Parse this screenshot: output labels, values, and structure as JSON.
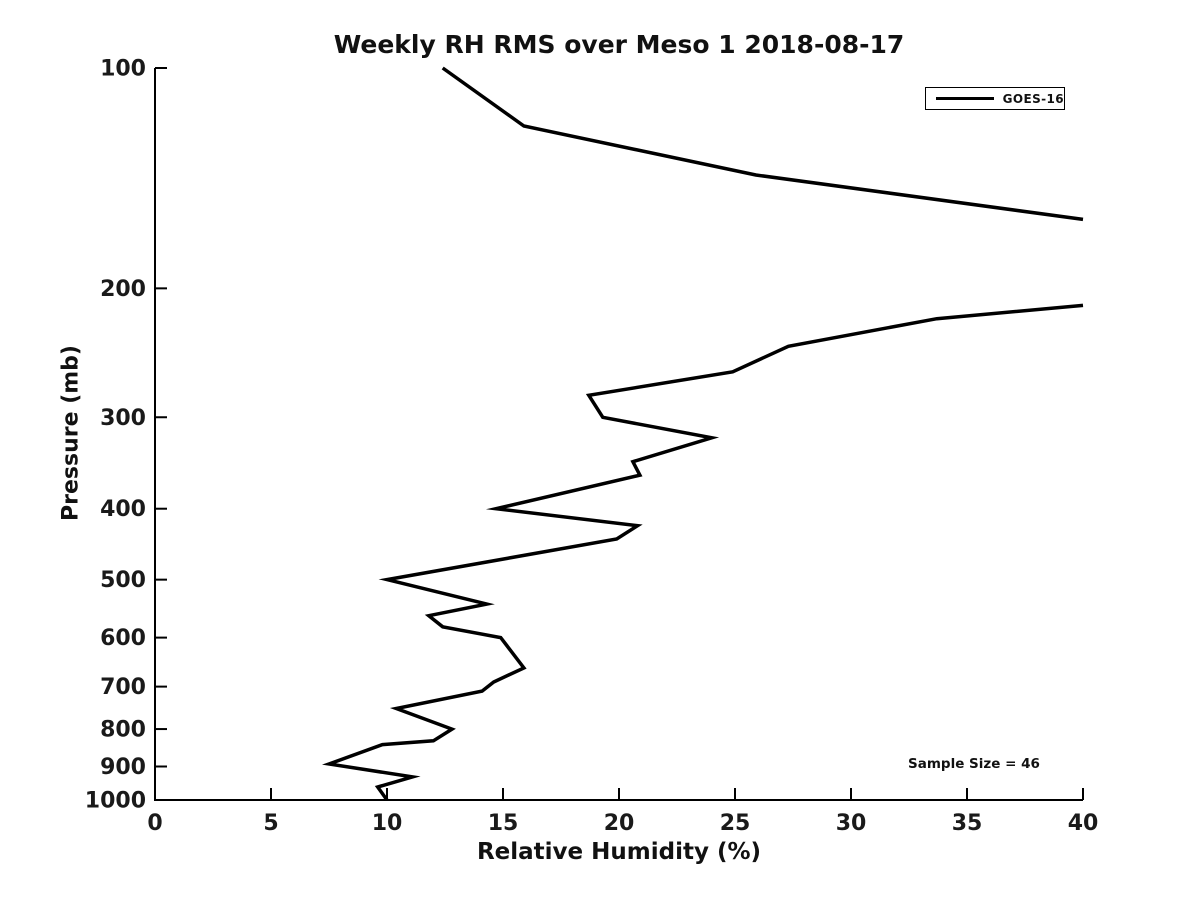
{
  "colors": {
    "line": "#000000",
    "axis": "#000000",
    "text": "#1a1a1a",
    "background": "#ffffff"
  },
  "chart_data": {
    "type": "line",
    "title": "Weekly RH RMS over Meso 1 2018-08-17",
    "xlabel": "Relative Humidity (%)",
    "ylabel": "Pressure (mb)",
    "xlim": [
      0,
      40
    ],
    "ylim_pressure": [
      100,
      1000
    ],
    "y_scale": "log",
    "y_inverted": true,
    "grid": false,
    "x_ticks": [
      0,
      5,
      10,
      15,
      20,
      25,
      30,
      35,
      40
    ],
    "y_ticks": [
      100,
      200,
      300,
      400,
      500,
      600,
      700,
      800,
      900,
      1000
    ],
    "legend": {
      "position": "upper right",
      "entries": [
        "GOES-16"
      ]
    },
    "series": [
      {
        "name": "GOES-16",
        "color": "#000000",
        "line_width": 3.5,
        "note": "Single continuous profile; RH exceeds the 40% axis limit between ~161 mb and ~211 mb, so the line is clipped at the right edge into two visible segments.",
        "segments": [
          {
            "points_rh_pressure": [
              [
                12.4,
                100
              ],
              [
                15.9,
                120
              ],
              [
                25.9,
                140
              ],
              [
                40,
                161
              ]
            ]
          },
          {
            "points_rh_pressure": [
              [
                40,
                211
              ],
              [
                33.7,
                220
              ],
              [
                27.3,
                240
              ],
              [
                24.9,
                260
              ],
              [
                18.7,
                280
              ],
              [
                19.3,
                300
              ],
              [
                24.0,
                320
              ],
              [
                20.6,
                345
              ],
              [
                20.9,
                360
              ],
              [
                14.7,
                400
              ],
              [
                20.8,
                422
              ],
              [
                19.9,
                440
              ],
              [
                10.0,
                500
              ],
              [
                14.3,
                540
              ],
              [
                11.8,
                560
              ],
              [
                12.4,
                580
              ],
              [
                14.9,
                600
              ],
              [
                15.9,
                660
              ],
              [
                14.6,
                690
              ],
              [
                14.1,
                710
              ],
              [
                10.4,
                750
              ],
              [
                12.8,
                800
              ],
              [
                12.0,
                830
              ],
              [
                9.8,
                840
              ],
              [
                7.5,
                893
              ],
              [
                11.1,
                930
              ],
              [
                9.6,
                960
              ],
              [
                10.0,
                1000
              ]
            ]
          }
        ]
      }
    ],
    "annotations": [
      {
        "text": "Sample Size = 46",
        "x_rh": 35,
        "y_pressure": 900
      }
    ]
  }
}
